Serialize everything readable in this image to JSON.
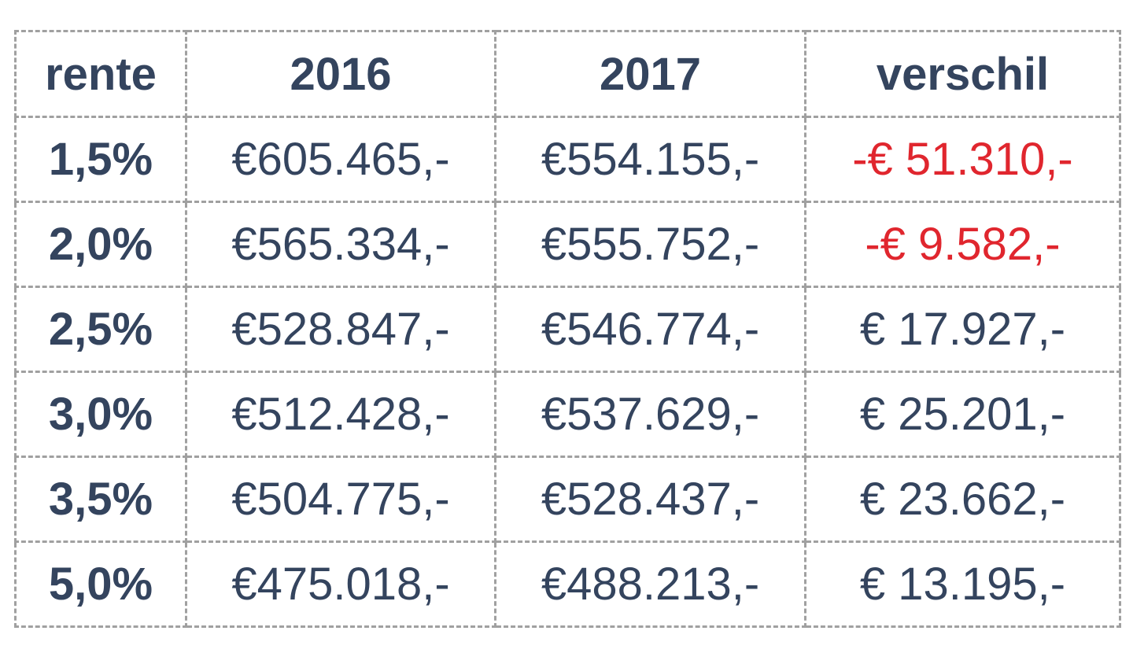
{
  "table": {
    "header": [
      "rente",
      "2016",
      "2017",
      "verschil"
    ],
    "rows": [
      [
        "1,5%",
        "€605.465,-",
        "€554.155,-",
        "-€ 51.310,-"
      ],
      [
        "2,0%",
        "€565.334,-",
        "€555.752,-",
        "-€ 9.582,-"
      ],
      [
        "2,5%",
        "€528.847,-",
        "€546.774,-",
        "€ 17.927,-"
      ],
      [
        "3,0%",
        "€512.428,-",
        "€537.629,-",
        "€ 25.201,-"
      ],
      [
        "3,5%",
        "€504.775,-",
        "€528.437,-",
        "€ 23.662,-"
      ],
      [
        "5,0%",
        "€475.018,-",
        "€488.213,-",
        "€ 13.195,-"
      ]
    ],
    "text_color": "#34445e",
    "negative_color": "#e0262e"
  }
}
